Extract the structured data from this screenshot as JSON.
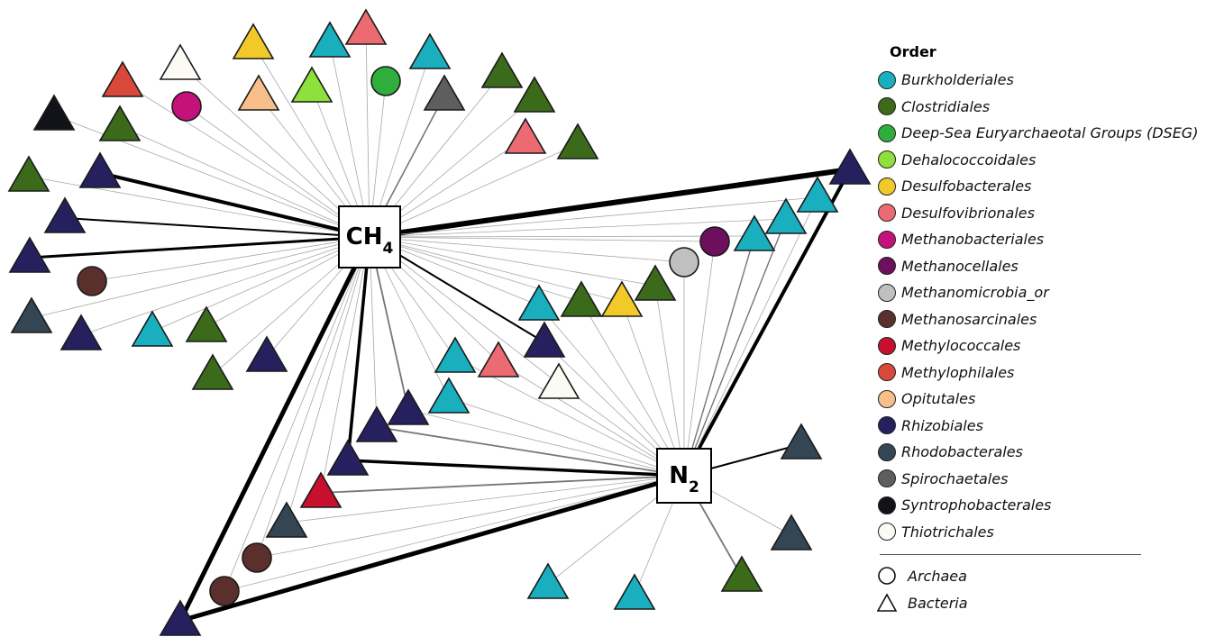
{
  "hubs": [
    {
      "id": "ch4",
      "base": "CH",
      "sub": "4"
    },
    {
      "id": "n2",
      "base": "N",
      "sub": "2"
    }
  ],
  "legend": {
    "title": "Order",
    "orders": [
      {
        "id": "burk",
        "label": "Burkholderiales",
        "color": "#1aafbf"
      },
      {
        "id": "clos",
        "label": "Clostridiales",
        "color": "#3b6a1a"
      },
      {
        "id": "dseg",
        "label": "Deep-Sea Euryarchaeotal Groups (DSEG)",
        "color": "#2fae3b"
      },
      {
        "id": "deha",
        "label": "Dehalococcoidales",
        "color": "#8ee03c"
      },
      {
        "id": "desb",
        "label": "Desulfobacterales",
        "color": "#f2c928"
      },
      {
        "id": "desv",
        "label": "Desulfovibrionales",
        "color": "#ec6b73"
      },
      {
        "id": "mbac",
        "label": "Methanobacteriales",
        "color": "#c4127a"
      },
      {
        "id": "mcel",
        "label": "Methanocellales",
        "color": "#6d0f5d"
      },
      {
        "id": "mmic",
        "label": "Methanomicrobia_or",
        "color": "#c0c0c0"
      },
      {
        "id": "msar",
        "label": "Methanosarcinales",
        "color": "#5b302c"
      },
      {
        "id": "mcoc",
        "label": "Methylococcales",
        "color": "#c8102e"
      },
      {
        "id": "mphi",
        "label": "Methylophilales",
        "color": "#d9483b"
      },
      {
        "id": "opit",
        "label": "Opitutales",
        "color": "#f8bf8a"
      },
      {
        "id": "rhiz",
        "label": "Rhizobiales",
        "color": "#26205f"
      },
      {
        "id": "rhod",
        "label": "Rhodobacterales",
        "color": "#344554"
      },
      {
        "id": "spir",
        "label": "Spirochaetales",
        "color": "#5e5e5e"
      },
      {
        "id": "synt",
        "label": "Syntrophobacterales",
        "color": "#111318"
      },
      {
        "id": "thio",
        "label": "Thiotrichales",
        "color": "#fbfbf4"
      }
    ],
    "shapes": [
      {
        "shape": "circle",
        "label": "Archaea"
      },
      {
        "shape": "triangle",
        "label": "Bacteria"
      }
    ]
  },
  "nodes": [
    {
      "order": "synt",
      "shape": "tri"
    },
    {
      "order": "clos",
      "shape": "tri"
    },
    {
      "order": "clos",
      "shape": "tri"
    },
    {
      "order": "rhiz",
      "shape": "tri"
    },
    {
      "order": "rhiz",
      "shape": "tri"
    },
    {
      "order": "rhiz",
      "shape": "tri"
    },
    {
      "order": "msar",
      "shape": "circ"
    },
    {
      "order": "rhod",
      "shape": "tri"
    },
    {
      "order": "rhiz",
      "shape": "tri"
    },
    {
      "order": "burk",
      "shape": "tri"
    },
    {
      "order": "clos",
      "shape": "tri"
    },
    {
      "order": "clos",
      "shape": "tri"
    },
    {
      "order": "rhiz",
      "shape": "tri"
    },
    {
      "order": "mphi",
      "shape": "tri"
    },
    {
      "order": "mbac",
      "shape": "circ"
    },
    {
      "order": "thio",
      "shape": "tri"
    },
    {
      "order": "desb",
      "shape": "tri"
    },
    {
      "order": "opit",
      "shape": "tri"
    },
    {
      "order": "deha",
      "shape": "tri"
    },
    {
      "order": "burk",
      "shape": "tri"
    },
    {
      "order": "desv",
      "shape": "tri"
    },
    {
      "order": "dseg",
      "shape": "circ"
    },
    {
      "order": "burk",
      "shape": "tri"
    },
    {
      "order": "spir",
      "shape": "tri"
    },
    {
      "order": "clos",
      "shape": "tri"
    },
    {
      "order": "clos",
      "shape": "tri"
    },
    {
      "order": "desv",
      "shape": "tri"
    },
    {
      "order": "clos",
      "shape": "tri"
    },
    {
      "order": "rhiz",
      "shape": "tri"
    },
    {
      "order": "burk",
      "shape": "tri"
    },
    {
      "order": "burk",
      "shape": "tri"
    },
    {
      "order": "burk",
      "shape": "tri"
    },
    {
      "order": "mcel",
      "shape": "circ"
    },
    {
      "order": "mmic",
      "shape": "circ"
    },
    {
      "order": "clos",
      "shape": "tri"
    },
    {
      "order": "desb",
      "shape": "tri"
    },
    {
      "order": "clos",
      "shape": "tri"
    },
    {
      "order": "burk",
      "shape": "tri"
    },
    {
      "order": "rhiz",
      "shape": "tri"
    },
    {
      "order": "thio",
      "shape": "tri"
    },
    {
      "order": "desv",
      "shape": "tri"
    },
    {
      "order": "burk",
      "shape": "tri"
    },
    {
      "order": "burk",
      "shape": "tri"
    },
    {
      "order": "rhiz",
      "shape": "tri"
    },
    {
      "order": "rhiz",
      "shape": "tri"
    },
    {
      "order": "rhiz",
      "shape": "tri"
    },
    {
      "order": "mcoc",
      "shape": "tri"
    },
    {
      "order": "rhod",
      "shape": "tri"
    },
    {
      "order": "msar",
      "shape": "circ"
    },
    {
      "order": "msar",
      "shape": "circ"
    },
    {
      "order": "rhiz",
      "shape": "tri"
    },
    {
      "order": "rhod",
      "shape": "tri"
    },
    {
      "order": "rhod",
      "shape": "tri"
    },
    {
      "order": "clos",
      "shape": "tri"
    },
    {
      "order": "burk",
      "shape": "tri"
    },
    {
      "order": "burk",
      "shape": "tri"
    }
  ]
}
